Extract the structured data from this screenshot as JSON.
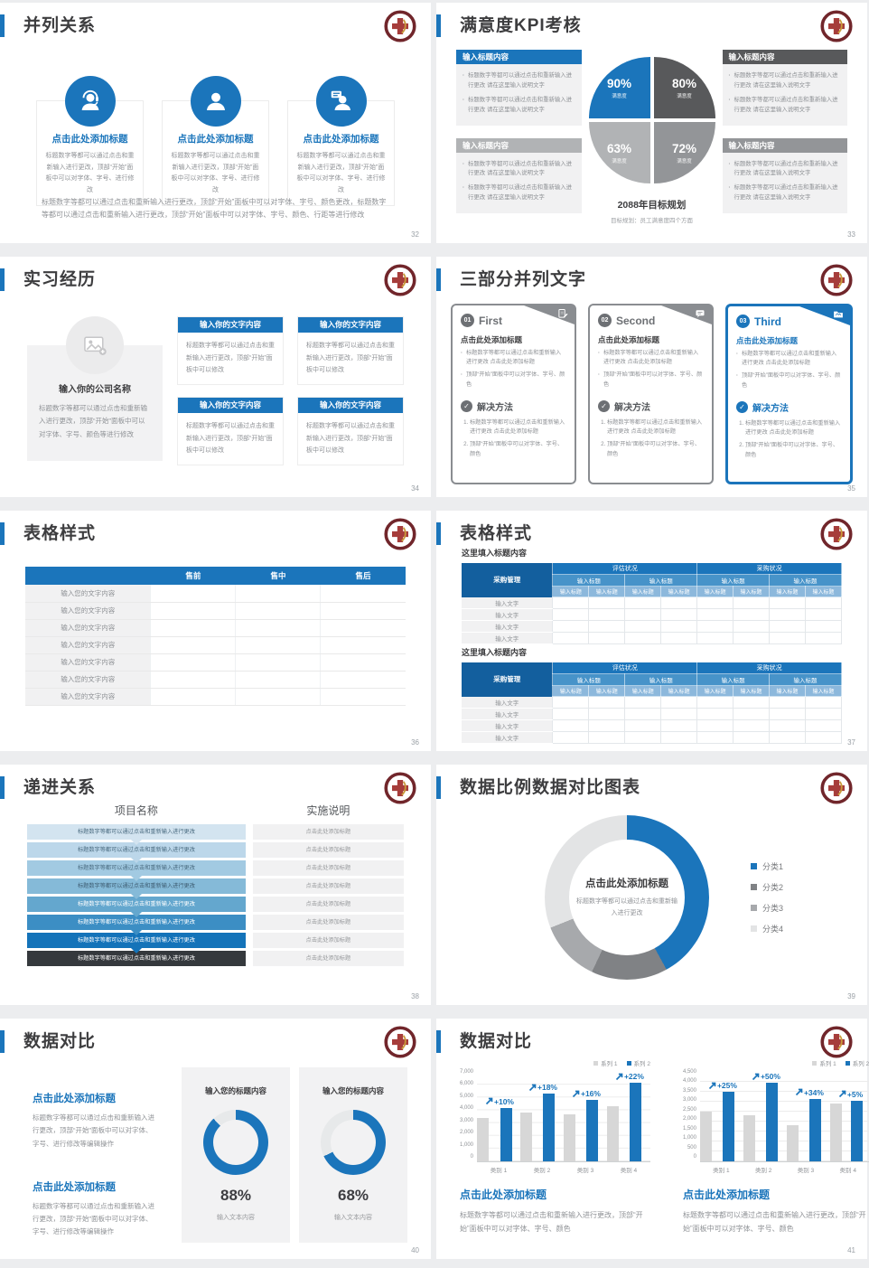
{
  "theme": {
    "blue": "#1b75bb",
    "blue_dark": "#135f9e",
    "blue_mid": "#4793c9",
    "blue_light": "#8cb8dc",
    "dark_gray": "#58595b",
    "mid_gray": "#939598",
    "light_gray": "#b1b3b5",
    "panel_gray": "#f1f1f2",
    "bar_gray": "#d7d7d7",
    "text_gray": "#8f9296",
    "title_dark": "#3d3d3f",
    "logo_maroon": "#71262b",
    "logo_gold": "#c99a3a"
  },
  "slides": {
    "s32": {
      "title": "并列关系",
      "page": "32",
      "items": [
        {
          "icon": "headset-person-icon",
          "title": "点击此处添加标题",
          "body": "标题数字等都可以通过点击和重新输入进行更改，顶部“开始”面板中可以对字体、字号、进行修改"
        },
        {
          "icon": "person-icon",
          "title": "点击此处添加标题",
          "body": "标题数字等都可以通过点击和重新输入进行更改，顶部“开始”面板中可以对字体、字号、进行修改"
        },
        {
          "icon": "speech-person-icon",
          "title": "点击此处添加标题",
          "body": "标题数字等都可以通过点击和重新输入进行更改，顶部“开始”面板中可以对字体、字号、进行修改"
        }
      ],
      "footer": "标题数字等都可以通过点击和重新输入进行更改，顶部“开始”面板中可以对字体、字号、颜色更改，标题数字等都可以通过点击和重新输入进行更改，顶部“开始”面板中可以对字体、字号、颜色、行距等进行修改"
    },
    "s33": {
      "title": "满意度KPI考核",
      "page": "33",
      "boxes": [
        {
          "header": "输入标题内容",
          "color_class": "c-blue",
          "bullets": [
            "标题数字等都可以通过点击和重新输入进行更改 请在这里输入说明文字",
            "标题数字等都可以通过点击和重新输入进行更改 请在这里输入说明文字"
          ]
        },
        {
          "header": "输入标题内容",
          "color_class": "c-dark",
          "bullets": [
            "标题数字等都可以通过点击和重新输入进行更改 请在这里输入说明文字",
            "标题数字等都可以通过点击和重新输入进行更改 请在这里输入说明文字"
          ]
        },
        {
          "header": "输入标题内容",
          "color_class": "c-light",
          "bullets": [
            "标题数字等都可以通过点击和重新输入进行更改 请在这里输入说明文字",
            "标题数字等都可以通过点击和重新输入进行更改 请在这里输入说明文字"
          ]
        },
        {
          "header": "输入标题内容",
          "color_class": "c-mid",
          "bullets": [
            "标题数字等都可以通过点击和重新输入进行更改 请在这里输入说明文字",
            "标题数字等都可以通过点击和重新输入进行更改 请在这里输入说明文字"
          ]
        }
      ],
      "quadrants": [
        {
          "pct": "90%",
          "label": "满意度",
          "color": "#1b75bb"
        },
        {
          "pct": "80%",
          "label": "满意度",
          "color": "#58595b"
        },
        {
          "pct": "63%",
          "label": "满意度",
          "color": "#b1b3b5"
        },
        {
          "pct": "72%",
          "label": "满意度",
          "color": "#939598"
        }
      ],
      "caption_title": "2088年目标规划",
      "caption_sub": "目标规划：员工满意度四个方面"
    },
    "s34": {
      "title": "实习经历",
      "page": "34",
      "left": {
        "name": "输入你的公司名称",
        "body": "标题数字等都可以通过点击和重新输入进行更改，顶部“开始”面板中可以对字体、字号、颜色等进行修改"
      },
      "boxes": [
        {
          "header": "输入你的文字内容",
          "body": "标题数字等都可以通过点击和重新输入进行更改，顶部“开始”面板中可以修改"
        },
        {
          "header": "输入你的文字内容",
          "body": "标题数字等都可以通过点击和重新输入进行更改，顶部“开始”面板中可以修改"
        },
        {
          "header": "输入你的文字内容",
          "body": "标题数字等都可以通过点击和重新输入进行更改，顶部“开始”面板中可以修改"
        },
        {
          "header": "输入你的文字内容",
          "body": "标题数字等都可以通过点击和重新输入进行更改，顶部“开始”面板中可以修改"
        }
      ]
    },
    "s35": {
      "title": "三部分并列文字",
      "page": "35",
      "cards": [
        {
          "num": "01",
          "name": "First",
          "icon": "clipboard-icon"
        },
        {
          "num": "02",
          "name": "Second",
          "icon": "chat-icon"
        },
        {
          "num": "03",
          "name": "Third",
          "icon": "folder-icon"
        }
      ],
      "card_body": {
        "heading": "点击此处添加标题",
        "bullets": [
          "标题数字等都可以通过点击和重新输入进行更改 点击此处添加标题",
          "顶部“开始”面板中可以对字体、字号、颜色"
        ],
        "solution": "解决方法",
        "steps": [
          "标题数字等都可以通过点击和重新输入进行更改 点击此处添加标题",
          "顶部“开始”面板中可以对字体、字号、颜色"
        ]
      }
    },
    "s36": {
      "title": "表格样式",
      "page": "36",
      "header": [
        "",
        "售前",
        "售中",
        "售后"
      ],
      "rows": [
        "输入您的文字内容",
        "输入您的文字内容",
        "输入您的文字内容",
        "输入您的文字内容",
        "输入您的文字内容",
        "输入您的文字内容",
        "输入您的文字内容"
      ]
    },
    "s37": {
      "title": "表格样式",
      "page": "37",
      "section_label": "这里填入标题内容",
      "corner": "采购管理",
      "groups": [
        "评估状况",
        "采购状况"
      ],
      "sub_headers": [
        "输入标题",
        "输入标题",
        "输入标题",
        "输入标题"
      ],
      "leaf_headers": [
        "输入标题",
        "输入标题",
        "输入标题",
        "输入标题",
        "输入标题",
        "输入标题",
        "输入标题",
        "输入标题"
      ],
      "body_rows": [
        "输入文字",
        "输入文字",
        "输入文字",
        "输入文字"
      ]
    },
    "s38": {
      "title": "递进关系",
      "page": "38",
      "col1": "项目名称",
      "col2": "实施说明",
      "rows": [
        {
          "text": "标题数字等都可以通过点击和重新输入进行更改",
          "right": "点击此处添加标题",
          "color": "#d3e4f0",
          "text_color": "#4a6b80"
        },
        {
          "text": "标题数字等都可以通过点击和重新输入进行更改",
          "right": "点击此处添加标题",
          "color": "#bcd7ea",
          "text_color": "#4a6b80"
        },
        {
          "text": "标题数字等都可以通过点击和重新输入进行更改",
          "right": "点击此处添加标题",
          "color": "#a2cae2",
          "text_color": "#4a6b80"
        },
        {
          "text": "标题数字等都可以通过点击和重新输入进行更改",
          "right": "点击此处添加标题",
          "color": "#85bad8",
          "text_color": "#3e5d72"
        },
        {
          "text": "标题数字等都可以通过点击和重新输入进行更改",
          "right": "点击此处添加标题",
          "color": "#64a7ce",
          "text_color": "#ffffff"
        },
        {
          "text": "标题数字等都可以通过点击和重新输入进行更改",
          "right": "点击此处添加标题",
          "color": "#3c8ec4",
          "text_color": "#ffffff"
        },
        {
          "text": "标题数字等都可以通过点击和重新输入进行更改",
          "right": "点击此处添加标题",
          "color": "#1473b9",
          "text_color": "#ffffff"
        },
        {
          "text": "标题数字等都可以通过点击和重新输入进行更改",
          "right": "点击此处添加标题",
          "color": "#35393d",
          "text_color": "#ffffff"
        }
      ]
    },
    "s39": {
      "title": "数据比例数据对比图表",
      "page": "39",
      "center_title": "点击此处添加标题",
      "center_sub": "标题数字等都可以通过点击和重新输入进行更改"
    },
    "s40": {
      "title": "数据对比",
      "page": "40",
      "blocks": [
        {
          "heading": "点击此处添加标题",
          "body": "标题数字等都可以通过点击和重新输入进行更改，顶部“开始”面板中可以对字体、字号、进行修改等编辑操作"
        },
        {
          "heading": "点击此处添加标题",
          "body": "标题数字等都可以通过点击和重新输入进行更改，顶部“开始”面板中可以对字体、字号、进行修改等编辑操作"
        }
      ],
      "cards": [
        {
          "title": "输入您的标题内容",
          "pct": "88%",
          "value": 88,
          "caption": "输入文本内容"
        },
        {
          "title": "输入您的标题内容",
          "pct": "68%",
          "value": 68,
          "caption": "输入文本内容"
        }
      ]
    },
    "s41": {
      "title": "数据对比",
      "page": "41",
      "left": {
        "heading": "点击此处添加标题",
        "body": "标题数字等都可以通过点击和重新输入进行更改，顶部“开始”面板中可以对字体、字号、颜色"
      },
      "right": {
        "heading": "点击此处添加标题",
        "body": "标题数字等都可以通过点击和重新输入进行更改，顶部“开始”面板中可以对字体、字号、颜色"
      }
    }
  },
  "chart_data": [
    {
      "id": "kpi-pie",
      "type": "pie",
      "title": "2088年目标规划",
      "categories": [
        "满意度",
        "满意度",
        "满意度",
        "满意度"
      ],
      "values": [
        90,
        80,
        63,
        72
      ],
      "value_labels": [
        "90%",
        "80%",
        "63%",
        "72%"
      ],
      "colors": [
        "#1b75bb",
        "#58595b",
        "#b1b3b5",
        "#939598"
      ],
      "note": "four quarter-circle quadrants, equal size, value printed inside each"
    },
    {
      "id": "donut-39",
      "type": "pie",
      "categories": [
        "分类1",
        "分类2",
        "分类3",
        "分类4"
      ],
      "values": [
        42,
        15,
        12,
        31
      ],
      "colors": [
        "#1b75bb",
        "#808285",
        "#a7a9ac",
        "#e3e4e5"
      ],
      "title": "点击此处添加标题",
      "legend_position": "right",
      "donut": true
    },
    {
      "id": "gauge-88",
      "type": "pie",
      "donut": true,
      "categories": [
        "完成",
        "剩余"
      ],
      "values": [
        88,
        12
      ],
      "colors": [
        "#1b75bb",
        "#e7e9ea"
      ],
      "title": "88%"
    },
    {
      "id": "gauge-68",
      "type": "pie",
      "donut": true,
      "categories": [
        "完成",
        "剩余"
      ],
      "values": [
        68,
        32
      ],
      "colors": [
        "#1b75bb",
        "#e7e9ea"
      ],
      "title": "68%"
    },
    {
      "id": "bar-left",
      "type": "bar",
      "categories": [
        "类别 1",
        "类别 2",
        "类别 3",
        "类别 4"
      ],
      "series": [
        {
          "name": "系列 1",
          "color": "#d7d7d7",
          "values": [
            3400,
            3800,
            3650,
            4300
          ]
        },
        {
          "name": "系列 2",
          "color": "#1b75bb",
          "values": [
            4200,
            5300,
            4800,
            6200
          ]
        }
      ],
      "point_labels": [
        "+10%",
        "+18%",
        "+16%",
        "+22%"
      ],
      "ylim": [
        0,
        7000
      ],
      "ytick": 1000,
      "grid": true,
      "legend_position": "top-right"
    },
    {
      "id": "bar-right",
      "type": "bar",
      "categories": [
        "类别 1",
        "类别 2",
        "类别 3",
        "类别 4"
      ],
      "series": [
        {
          "name": "系列 1",
          "color": "#d7d7d7",
          "values": [
            2500,
            2300,
            1800,
            2900
          ]
        },
        {
          "name": "系列 2",
          "color": "#1b75bb",
          "values": [
            3500,
            4200,
            3150,
            3050
          ]
        }
      ],
      "point_labels": [
        "+25%",
        "+50%",
        "+34%",
        "+5%"
      ],
      "ylim": [
        0,
        4500
      ],
      "ytick": 500,
      "grid": true,
      "legend_position": "top-right"
    }
  ]
}
